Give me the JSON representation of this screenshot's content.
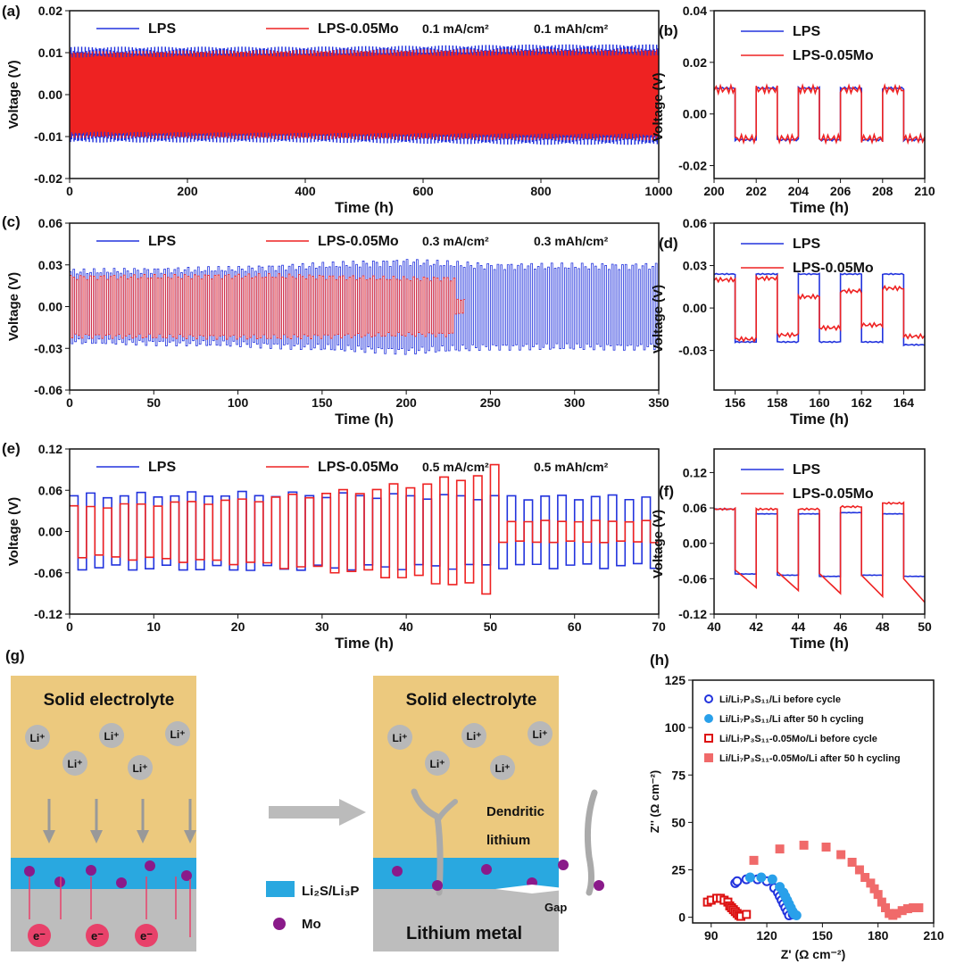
{
  "colors": {
    "lps": "#2233dd",
    "mo": "#ee2222",
    "electrolyte": "#ecc97e",
    "interlayer": "#29a8e0",
    "metal": "#bdbdbd",
    "mo_dot": "#8a1a8a",
    "electron": "#e8416a",
    "ion": "#b8b8b8"
  },
  "chart_data": [
    {
      "id": "a",
      "type": "line",
      "panel_label": "(a)",
      "xlabel": "Time (h)",
      "ylabel": "Voltage (V)",
      "xlim": [
        0,
        1000
      ],
      "ylim": [
        -0.02,
        0.02
      ],
      "xticks": [
        "0",
        "200",
        "400",
        "600",
        "800",
        "1000"
      ],
      "yticks": [
        "0.02",
        "0.01",
        "0.00",
        "-0.01",
        "-0.02"
      ],
      "annotations": [
        "0.1 mA/cm²",
        "0.1 mAh/cm²"
      ],
      "half_period_h": 1,
      "series": [
        {
          "name": "LPS",
          "color": "#2233dd",
          "x": [
            0,
            400,
            800,
            1000
          ],
          "amplitude": [
            0.0105,
            0.0105,
            0.011,
            0.011
          ]
        },
        {
          "name": "LPS-0.05Mo",
          "color": "#ee2222",
          "x": [
            0,
            400,
            800,
            1000
          ],
          "amplitude": [
            0.0095,
            0.0098,
            0.01,
            0.01
          ]
        }
      ]
    },
    {
      "id": "b",
      "type": "line",
      "panel_label": "(b)",
      "xlabel": "Time (h)",
      "ylabel": "Voltage (V)",
      "xlim": [
        200,
        210
      ],
      "ylim": [
        -0.025,
        0.04
      ],
      "xticks": [
        "200",
        "202",
        "204",
        "206",
        "208",
        "210"
      ],
      "yticks": [
        "0.04",
        "0.02",
        "0.00",
        "-0.02"
      ],
      "series": [
        {
          "name": "LPS",
          "color": "#2233dd",
          "steps_start": 200,
          "step_h": 1,
          "levels": [
            0.01,
            -0.01,
            0.01,
            -0.01,
            0.01,
            -0.01,
            0.01,
            -0.01,
            0.01,
            -0.01
          ]
        },
        {
          "name": "LPS-0.05Mo",
          "color": "#ee2222",
          "steps_start": 200,
          "step_h": 1,
          "levels": [
            0.0095,
            -0.0095,
            0.0095,
            -0.0095,
            0.0095,
            -0.0095,
            0.0095,
            -0.0095,
            0.0095,
            -0.0095
          ]
        }
      ]
    },
    {
      "id": "c",
      "type": "line",
      "panel_label": "(c)",
      "xlabel": "Time (h)",
      "ylabel": "Voltage (V)",
      "xlim": [
        0,
        350
      ],
      "ylim": [
        -0.06,
        0.06
      ],
      "xticks": [
        "0",
        "50",
        "100",
        "150",
        "200",
        "250",
        "300",
        "350"
      ],
      "yticks": [
        "0.06",
        "0.03",
        "0.00",
        "-0.03",
        "-0.06"
      ],
      "annotations": [
        "0.3 mA/cm²",
        "0.3 mAh/cm²"
      ],
      "half_period_h": 1,
      "series": [
        {
          "name": "LPS",
          "color": "#2233dd",
          "x": [
            0,
            100,
            200,
            250,
            350
          ],
          "amplitude": [
            0.025,
            0.027,
            0.032,
            0.029,
            0.029
          ]
        },
        {
          "name": "LPS-0.05Mo",
          "color": "#ee2222",
          "x": [
            0,
            120,
            200,
            228,
            229,
            235
          ],
          "amplitude": [
            0.021,
            0.022,
            0.02,
            0.02,
            0.005,
            0.005
          ]
        }
      ]
    },
    {
      "id": "d",
      "type": "line",
      "panel_label": "(d)",
      "xlabel": "Time (h)",
      "ylabel": "Voltage (V)",
      "xlim": [
        155,
        165
      ],
      "ylim": [
        -0.058,
        0.06
      ],
      "xticks": [
        "156",
        "158",
        "160",
        "162",
        "164"
      ],
      "yticks": [
        "0.06",
        "0.03",
        "0.00",
        "-0.03"
      ],
      "series": [
        {
          "name": "LPS",
          "color": "#2233dd",
          "steps_start": 155,
          "step_h": 1,
          "levels": [
            0.024,
            -0.024,
            0.024,
            -0.024,
            0.024,
            -0.024,
            0.024,
            -0.024,
            0.024,
            -0.026
          ]
        },
        {
          "name": "LPS-0.05Mo",
          "color": "#ee2222",
          "steps_start": 155,
          "step_h": 1,
          "levels": [
            0.02,
            -0.022,
            0.021,
            -0.019,
            0.008,
            -0.014,
            0.012,
            -0.012,
            0.014,
            -0.02
          ]
        }
      ]
    },
    {
      "id": "e",
      "type": "line",
      "panel_label": "(e)",
      "xlabel": "Time (h)",
      "ylabel": "Voltage (V)",
      "xlim": [
        0,
        70
      ],
      "ylim": [
        -0.12,
        0.12
      ],
      "xticks": [
        "0",
        "10",
        "20",
        "30",
        "40",
        "50",
        "60",
        "70"
      ],
      "yticks": [
        "0.12",
        "0.06",
        "0.00",
        "-0.06",
        "-0.12"
      ],
      "annotations": [
        "0.5 mA/cm²",
        "0.5 mAh/cm²"
      ],
      "half_period_h": 1,
      "series": [
        {
          "name": "LPS",
          "color": "#2233dd",
          "x": [
            0,
            20,
            50,
            70
          ],
          "amplitude": [
            0.052,
            0.054,
            0.05,
            0.05
          ]
        },
        {
          "name": "LPS-0.05Mo",
          "color": "#ee2222",
          "x": [
            0,
            20,
            35,
            45,
            50,
            51,
            70
          ],
          "amplitude": [
            0.035,
            0.045,
            0.06,
            0.075,
            0.09,
            0.015,
            0.015
          ]
        }
      ]
    },
    {
      "id": "f",
      "type": "line",
      "panel_label": "(f)",
      "xlabel": "Time (h)",
      "ylabel": "Voltage (V)",
      "xlim": [
        40,
        50
      ],
      "ylim": [
        -0.12,
        0.16
      ],
      "xticks": [
        "40",
        "42",
        "44",
        "46",
        "48",
        "50"
      ],
      "yticks": [
        "0.12",
        "0.06",
        "0.00",
        "-0.06",
        "-0.12"
      ],
      "series": [
        {
          "name": "LPS",
          "color": "#2233dd",
          "steps_start": 40,
          "step_h": 1,
          "levels": [
            0.058,
            -0.052,
            0.05,
            -0.054,
            0.05,
            -0.056,
            0.052,
            -0.054,
            0.05,
            -0.056
          ]
        },
        {
          "name": "LPS-0.05Mo",
          "color": "#ee2222",
          "steps_start": 40,
          "step_h": 1,
          "levels": [
            0.058,
            -0.075,
            0.058,
            -0.08,
            0.058,
            -0.085,
            0.062,
            -0.09,
            0.068,
            -0.1
          ]
        }
      ]
    },
    {
      "id": "h",
      "type": "scatter",
      "panel_label": "(h)",
      "xlabel": "Z' (Ω cm⁻²)",
      "ylabel": "Z'' (Ω cm⁻²)",
      "xlim": [
        80,
        210
      ],
      "ylim": [
        -3,
        125
      ],
      "xticks": [
        "90",
        "120",
        "150",
        "180",
        "210"
      ],
      "yticks": [
        "0",
        "25",
        "50",
        "75",
        "100",
        "125"
      ],
      "series": [
        {
          "name": "Li/Li₇P₃S₁₁/Li before cycle",
          "marker": "open-circle",
          "color": "#2233dd",
          "points": [
            [
              103,
              18
            ],
            [
              104,
              19
            ],
            [
              109,
              20
            ],
            [
              115,
              20
            ],
            [
              120,
              19
            ],
            [
              124,
              15.5
            ],
            [
              126,
              13
            ],
            [
              127,
              11
            ],
            [
              128,
              9
            ],
            [
              129,
              7
            ],
            [
              130,
              5
            ],
            [
              131,
              3
            ],
            [
              132,
              1
            ],
            [
              134,
              1.5
            ]
          ]
        },
        {
          "name": "Li/Li₇P₃S₁₁/Li after 50 h cycling",
          "marker": "filled-circle",
          "color": "#29a0ea",
          "points": [
            [
              111,
              21
            ],
            [
              117,
              21
            ],
            [
              123,
              20
            ],
            [
              127,
              16
            ],
            [
              129,
              13
            ],
            [
              130,
              11
            ],
            [
              131,
              9
            ],
            [
              132,
              7
            ],
            [
              133,
              5
            ],
            [
              134,
              3
            ],
            [
              135,
              1.5
            ],
            [
              136,
              1
            ]
          ]
        },
        {
          "name": "Li/Li₇P₃S₁₁-0.05Mo/Li before cycle",
          "marker": "open-square",
          "color": "#dd1111",
          "points": [
            [
              88,
              8
            ],
            [
              90,
              9
            ],
            [
              93,
              10
            ],
            [
              95,
              10
            ],
            [
              97,
              9
            ],
            [
              99,
              8
            ],
            [
              100,
              6
            ],
            [
              101,
              5
            ],
            [
              102,
              4
            ],
            [
              103,
              3
            ],
            [
              104,
              2
            ],
            [
              105,
              1
            ],
            [
              106,
              0.5
            ],
            [
              109,
              1.5
            ]
          ]
        },
        {
          "name": "Li/Li₇P₃S₁₁-0.05Mo/Li after 50 h cycling",
          "marker": "filled-square",
          "color": "#f06a6a",
          "points": [
            [
              113,
              30
            ],
            [
              127,
              36
            ],
            [
              140,
              38
            ],
            [
              152,
              37
            ],
            [
              160,
              33
            ],
            [
              166,
              29
            ],
            [
              170,
              25
            ],
            [
              173,
              21
            ],
            [
              176,
              18
            ],
            [
              178,
              15
            ],
            [
              180,
              12
            ],
            [
              182,
              8
            ],
            [
              184,
              5
            ],
            [
              186,
              2
            ],
            [
              188,
              1
            ],
            [
              190,
              2
            ],
            [
              193,
              3.5
            ],
            [
              196,
              4.5
            ],
            [
              199,
              5
            ],
            [
              202,
              5
            ]
          ]
        }
      ]
    }
  ],
  "schematic": {
    "panel_label": "(g)",
    "electrolyte_label": "Solid electrolyte",
    "ion_label": "Li⁺",
    "electron_label": "e⁻",
    "legend_interlayer": "Li₂S/Li₃P",
    "legend_mo": "Mo",
    "dendrite_label_1": "Dendritic",
    "dendrite_label_2": "lithium",
    "gap_label": "Gap",
    "metal_label": "Lithium metal"
  }
}
